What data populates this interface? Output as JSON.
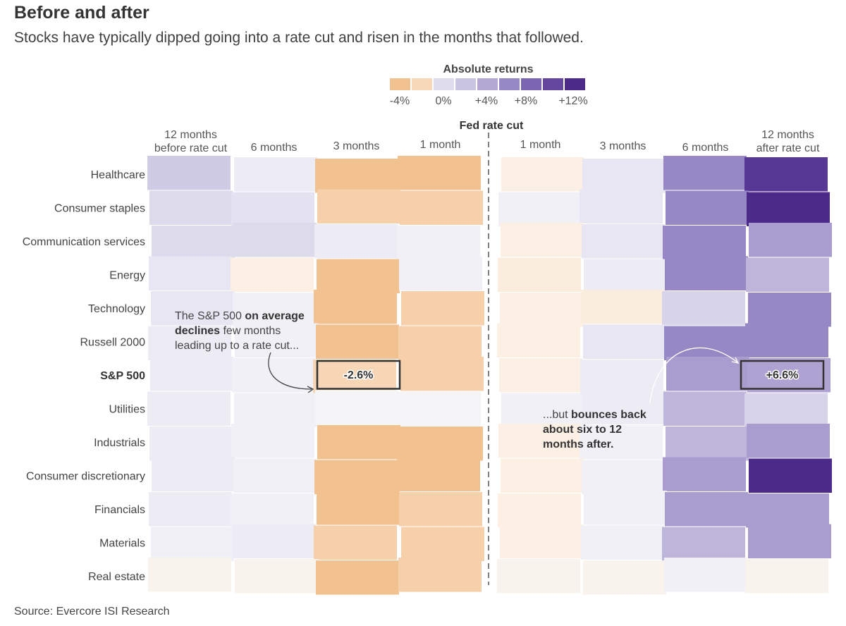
{
  "title": "Before and after",
  "subtitle": "Stocks have typically dipped going into a rate cut and risen in the months that followed.",
  "source": "Source: Evercore ISI Research",
  "annotations": {
    "left": {
      "pre": "The S&P 500 ",
      "b1": "on average declines",
      "post": " few months leading up to a rate cut..."
    },
    "right": {
      "pre": "...but ",
      "b1": "bounces back about six to 12 months after."
    }
  },
  "chart_data": {
    "type": "heatmap",
    "legend": {
      "title": "Absolute returns",
      "colors": [
        "#f2c190",
        "#f6d8b8",
        "#dedced",
        "#c9c4e0",
        "#b3a8d4",
        "#9688c4",
        "#7b66b2",
        "#63479f",
        "#4b2a8a"
      ],
      "tick_labels": [
        "-4%",
        "0%",
        "+4%",
        "+8%",
        "+12%"
      ]
    },
    "divider_label": "Fed rate cut",
    "columns": [
      "12 months before rate cut",
      "6 months",
      "3 months",
      "1 month",
      "1 month",
      "3 months",
      "6 months",
      "12 months after rate cut"
    ],
    "column_label_lines": [
      [
        "12 months",
        "before rate cut"
      ],
      [
        "6 months"
      ],
      [
        "3 months"
      ],
      [
        "1 month"
      ],
      [
        "1 month"
      ],
      [
        "3 months"
      ],
      [
        "6 months"
      ],
      [
        "12 months",
        "after rate cut"
      ]
    ],
    "rows": [
      "Healthcare",
      "Consumer staples",
      "Communication services",
      "Energy",
      "Technology",
      "Russell 2000",
      "S&P 500",
      "Utilities",
      "Industrials",
      "Consumer discretionary",
      "Financials",
      "Materials",
      "Real estate"
    ],
    "highlight_row": "S&P 500",
    "values": [
      [
        3.5,
        1,
        -4,
        -4,
        -1,
        1.5,
        9,
        14
      ],
      [
        2.5,
        2,
        -3,
        -3,
        0.5,
        1.5,
        9,
        16
      ],
      [
        2.5,
        2.5,
        1,
        0.5,
        -1,
        1.5,
        9,
        7
      ],
      [
        1.5,
        -1,
        -4,
        0.5,
        -1.2,
        1,
        9,
        5
      ],
      [
        1.5,
        0.5,
        -4,
        -3,
        -1,
        -1.2,
        3,
        9
      ],
      [
        1,
        0.5,
        -4,
        -3,
        -1,
        1.5,
        9,
        9
      ],
      [
        1,
        0.5,
        -2.6,
        -3,
        -1,
        1,
        7,
        6.6
      ],
      [
        1,
        0.5,
        0,
        0,
        0.5,
        1,
        5,
        3
      ],
      [
        1,
        0.5,
        -4,
        -4,
        -1,
        0.5,
        5,
        7
      ],
      [
        1,
        0.5,
        -4,
        -4,
        -1,
        0.5,
        7,
        16
      ],
      [
        1,
        0.5,
        -4,
        -3,
        -1,
        0.5,
        7,
        7
      ],
      [
        0.5,
        1,
        -3,
        -3,
        -1,
        0.5,
        5,
        7
      ],
      [
        -0.5,
        -0.5,
        -4,
        -3,
        -0.5,
        -0.5,
        0.5,
        -0.5
      ]
    ],
    "callouts": [
      {
        "row": "S&P 500",
        "column": 2,
        "label": "-2.6%"
      },
      {
        "row": "S&P 500",
        "column": 7,
        "label": "+6.6%"
      }
    ]
  }
}
